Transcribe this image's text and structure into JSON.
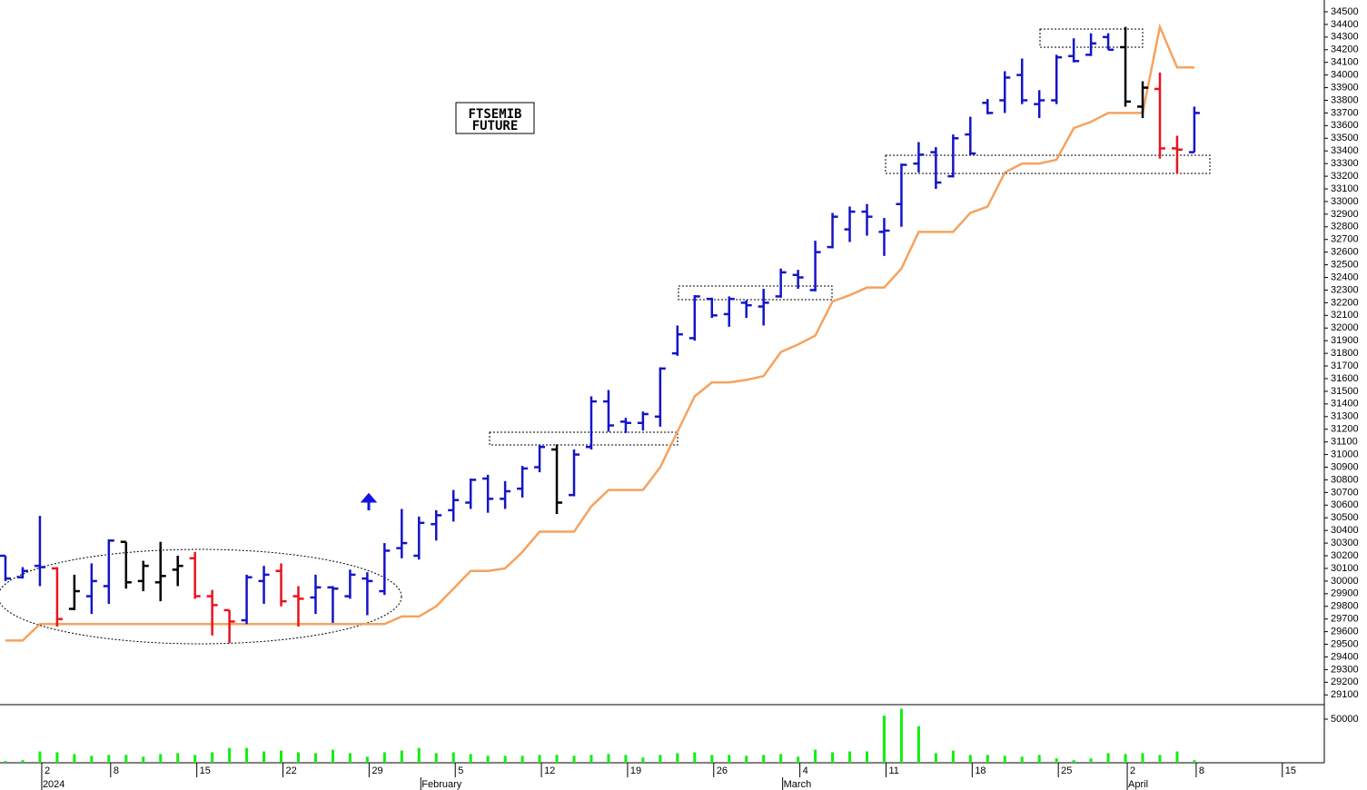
{
  "chart_data": [
    {
      "type": "ohlc",
      "annotation": [
        "FTSEMIB",
        "FUTURE"
      ],
      "ylim": [
        29023,
        34593
      ],
      "yticks": [
        29100,
        29200,
        29300,
        29400,
        29500,
        29600,
        29700,
        29800,
        29900,
        30000,
        30100,
        30200,
        30300,
        30400,
        30500,
        30600,
        30700,
        30800,
        30900,
        31000,
        31100,
        31200,
        31300,
        31400,
        31500,
        31600,
        31700,
        31800,
        31900,
        32000,
        32100,
        32200,
        32300,
        32400,
        32500,
        32600,
        32700,
        32800,
        32900,
        33000,
        33100,
        33200,
        33300,
        33400,
        33500,
        33600,
        33700,
        33800,
        33900,
        34000,
        34100,
        34200,
        34300,
        34400,
        34500
      ],
      "open": [
        30200,
        30030,
        30120,
        30100,
        29780,
        29880,
        29960,
        30310,
        30000,
        29990,
        30090,
        30180,
        29880,
        29770,
        29690,
        30000,
        30080,
        29880,
        29870,
        29950,
        29880,
        30020,
        29920,
        30260,
        30200,
        30450,
        30560,
        30620,
        30810,
        30650,
        30730,
        30900,
        31040,
        30680,
        31060,
        31420,
        31260,
        31250,
        31300,
        31800,
        31920,
        32230,
        32110,
        32200,
        32170,
        32250,
        32420,
        32300,
        32640,
        32780,
        32920,
        32760,
        32980,
        33300,
        33390,
        33200,
        33530,
        33780,
        33800,
        34000,
        33770,
        33800,
        34150,
        34160,
        34300,
        34220,
        33750,
        33890,
        33420,
        33390,
        null,
        null,
        null,
        null,
        null
      ],
      "high": [
        30200,
        30110,
        30515,
        30110,
        30050,
        30140,
        30330,
        30310,
        30160,
        30310,
        30200,
        30230,
        29930,
        29770,
        30050,
        30120,
        30140,
        29960,
        30050,
        29960,
        30090,
        30070,
        30300,
        30570,
        30510,
        30560,
        30720,
        30810,
        30840,
        30790,
        30910,
        31080,
        31080,
        31040,
        31460,
        31510,
        31290,
        31340,
        31690,
        32020,
        32260,
        32240,
        32250,
        32220,
        32310,
        32470,
        32460,
        32690,
        32910,
        32960,
        32980,
        32870,
        33300,
        33470,
        33430,
        33530,
        33670,
        33810,
        34030,
        34130,
        33880,
        34160,
        34290,
        34330,
        34330,
        34380,
        33950,
        34020,
        33520,
        33750,
        null,
        null,
        null,
        null,
        null
      ],
      "low": [
        30000,
        30020,
        29960,
        29640,
        29770,
        29740,
        29820,
        29940,
        29920,
        29840,
        29960,
        29860,
        29570,
        29510,
        29660,
        29820,
        29800,
        29640,
        29740,
        29670,
        29860,
        29730,
        29890,
        30180,
        30170,
        30320,
        30470,
        30570,
        30540,
        30570,
        30660,
        30860,
        30530,
        30670,
        31040,
        31180,
        31170,
        31190,
        31220,
        31780,
        31900,
        32080,
        32010,
        32080,
        32020,
        32240,
        32310,
        32290,
        32630,
        32680,
        32730,
        32570,
        32800,
        33230,
        33100,
        33190,
        33370,
        33690,
        33700,
        33770,
        33660,
        33770,
        34100,
        34150,
        34200,
        33750,
        33660,
        33340,
        33220,
        33390,
        null,
        null,
        null,
        null,
        null
      ],
      "close": [
        30020,
        30080,
        30110,
        29700,
        29920,
        30000,
        30320,
        29990,
        30120,
        30040,
        30120,
        29880,
        29810,
        29680,
        30030,
        30050,
        29840,
        29860,
        29950,
        29940,
        30050,
        30000,
        30240,
        30300,
        30460,
        30520,
        30640,
        30800,
        30650,
        30710,
        30890,
        31060,
        30620,
        31000,
        31420,
        31230,
        31250,
        31320,
        31680,
        31950,
        32250,
        32100,
        32230,
        32180,
        32200,
        32440,
        32400,
        32600,
        32880,
        32920,
        32880,
        32770,
        33290,
        33370,
        33150,
        33500,
        33380,
        33700,
        33980,
        33800,
        33800,
        34140,
        34110,
        34250,
        34200,
        33790,
        33900,
        33420,
        33410,
        33700,
        null,
        null,
        null,
        null,
        null
      ],
      "bar_colors": [
        "#1414c8",
        "#1414c8",
        "#1414c8",
        "#e8141e",
        "#000000",
        "#1414c8",
        "#1414c8",
        "#000000",
        "#000000",
        "#000000",
        "#000000",
        "#e8141e",
        "#e8141e",
        "#e8141e",
        "#1414c8",
        "#1414c8",
        "#e8141e",
        "#e8141e",
        "#1414c8",
        "#1414c8",
        "#1414c8",
        "#1414c8",
        "#1414c8",
        "#1414c8",
        "#1414c8",
        "#1414c8",
        "#1414c8",
        "#1414c8",
        "#1414c8",
        "#1414c8",
        "#1414c8",
        "#1414c8",
        "#000000",
        "#1414c8",
        "#1414c8",
        "#1414c8",
        "#1414c8",
        "#1414c8",
        "#1414c8",
        "#1414c8",
        "#1414c8",
        "#1414c8",
        "#1414c8",
        "#1414c8",
        "#1414c8",
        "#1414c8",
        "#1414c8",
        "#1414c8",
        "#1414c8",
        "#1414c8",
        "#1414c8",
        "#1414c8",
        "#1414c8",
        "#1414c8",
        "#1414c8",
        "#1414c8",
        "#1414c8",
        "#1414c8",
        "#1414c8",
        "#1414c8",
        "#1414c8",
        "#1414c8",
        "#1414c8",
        "#1414c8",
        "#1414c8",
        "#000000",
        "#000000",
        "#e8141e",
        "#e8141e",
        "#1414c8",
        null,
        null,
        null,
        null,
        null
      ],
      "line": {
        "color": "#f5a25e",
        "values": [
          29530,
          29530,
          29660,
          29660,
          29660,
          29660,
          29660,
          29660,
          29660,
          29660,
          29660,
          29660,
          29660,
          29660,
          29660,
          29660,
          29660,
          29660,
          29660,
          29660,
          29660,
          29660,
          29660,
          29720,
          29720,
          29800,
          29940,
          30080,
          30080,
          30100,
          30230,
          30390,
          30390,
          30390,
          30590,
          30720,
          30720,
          30720,
          30900,
          31180,
          31460,
          31570,
          31570,
          31590,
          31620,
          31810,
          31870,
          31940,
          32210,
          32260,
          32320,
          32320,
          32470,
          32760,
          32760,
          32760,
          32910,
          32960,
          33230,
          33300,
          33300,
          33330,
          33580,
          33630,
          33700,
          33700,
          33700,
          34380,
          34060,
          34060,
          null,
          null,
          null,
          null,
          null
        ]
      }
    },
    {
      "type": "bar",
      "color": "#11ee11",
      "ylim": [
        0,
        66700
      ],
      "yticks": [
        50000
      ],
      "values": [
        2000,
        3000,
        13000,
        12000,
        10000,
        8000,
        9000,
        9000,
        7000,
        10000,
        11000,
        9000,
        12000,
        17000,
        17000,
        13000,
        14000,
        12000,
        11000,
        15000,
        11000,
        7000,
        12000,
        14000,
        17000,
        11000,
        12000,
        10000,
        8000,
        8000,
        8000,
        9000,
        9000,
        8000,
        9000,
        10000,
        9000,
        6000,
        9000,
        11000,
        12000,
        9000,
        9000,
        8000,
        9000,
        10000,
        7000,
        15000,
        12000,
        13000,
        13000,
        54000,
        62000,
        42000,
        11000,
        14000,
        9000,
        9000,
        8000,
        7000,
        9000,
        5000,
        3000,
        5000,
        11000,
        10000,
        11000,
        9000,
        13000,
        3000,
        null,
        null,
        null,
        null,
        null
      ],
      "categories": [
        null,
        null,
        "2",
        null,
        null,
        null,
        "8",
        null,
        null,
        null,
        null,
        "15",
        null,
        null,
        null,
        null,
        "22",
        null,
        null,
        null,
        null,
        "29",
        null,
        null,
        null,
        null,
        "5",
        null,
        null,
        null,
        null,
        "12",
        null,
        null,
        null,
        null,
        "19",
        null,
        null,
        null,
        null,
        "26",
        null,
        null,
        null,
        null,
        "4",
        null,
        null,
        null,
        null,
        "11",
        null,
        null,
        null,
        null,
        "18",
        null,
        null,
        null,
        null,
        "25",
        null,
        null,
        null,
        "2",
        null,
        null,
        null,
        "8",
        null,
        null,
        null,
        null,
        "15"
      ],
      "months": [
        null,
        null,
        "2024",
        null,
        null,
        null,
        null,
        null,
        null,
        null,
        null,
        null,
        null,
        null,
        null,
        null,
        null,
        null,
        null,
        null,
        null,
        null,
        null,
        null,
        "February",
        null,
        null,
        null,
        null,
        null,
        null,
        null,
        null,
        null,
        null,
        null,
        null,
        null,
        null,
        null,
        null,
        null,
        null,
        null,
        null,
        "March",
        null,
        null,
        null,
        null,
        null,
        null,
        null,
        null,
        null,
        null,
        null,
        null,
        null,
        null,
        null,
        null,
        null,
        null,
        null,
        "April",
        null,
        null,
        null,
        null,
        null,
        null,
        null,
        null,
        null
      ]
    }
  ]
}
